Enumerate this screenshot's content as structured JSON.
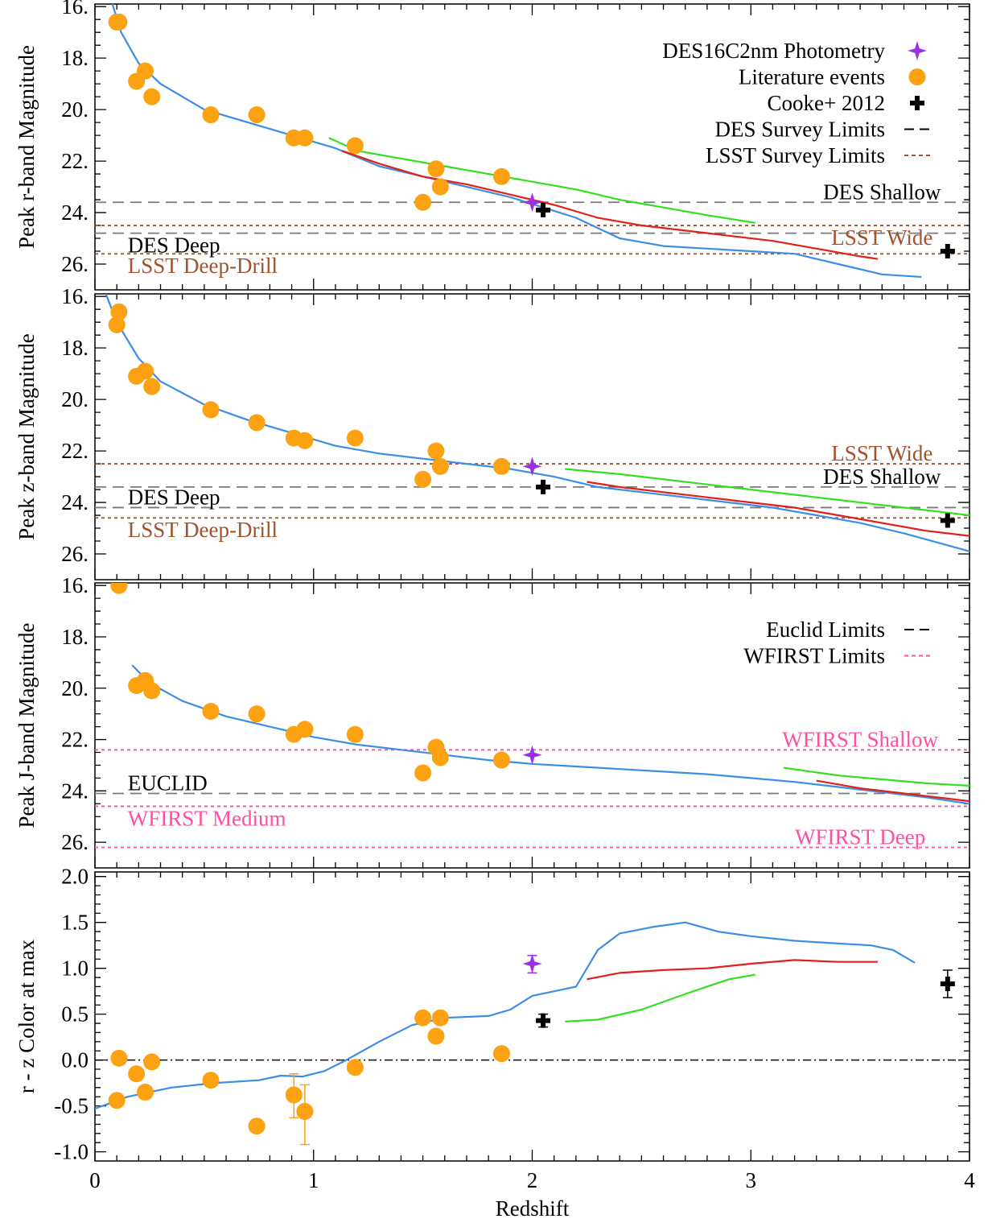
{
  "colors": {
    "model_blue": "#3b8ee6",
    "model_red": "#e0201a",
    "model_green": "#33e01e",
    "literature": "#fba112",
    "des16": "#9a2fe6",
    "cooke": "#000000",
    "des_limit": "#7a7a7a",
    "lsst_limit": "#a0522d",
    "wfirst_limit": "#ff4fa3",
    "lsst_text": "#a0522d",
    "wfirst_text": "#ff4fa3"
  },
  "chart_data": [
    {
      "type": "scatter",
      "ylabel": "Peak r-band Magnitude",
      "xlim": [
        0,
        4
      ],
      "ylim": [
        27,
        15.9
      ],
      "yticks": [
        "16.",
        "18.",
        "20.",
        "22.",
        "24.",
        "26."
      ],
      "legend": [
        {
          "label": "DES16C2nm Photometry",
          "marker": "star",
          "color": "#9a2fe6"
        },
        {
          "label": "Literature events",
          "marker": "circle",
          "color": "#fba112"
        },
        {
          "label": "Cooke+ 2012",
          "marker": "plus",
          "color": "#000000"
        },
        {
          "label": "DES Survey Limits",
          "marker": "dash",
          "color": "#000000"
        },
        {
          "label": "LSST Survey Limits",
          "marker": "dot",
          "color": "#a0522d"
        }
      ],
      "limits": [
        {
          "label": "DES Shallow",
          "y": 23.6,
          "style": "dash",
          "color": "#7a7a7a",
          "text_color": "#000000",
          "label_x": 3.6,
          "label_pos": "above"
        },
        {
          "label": "LSST Wide",
          "y": 24.5,
          "style": "dot",
          "color": "#a0522d",
          "text_color": "#a0522d",
          "label_x": 3.6,
          "label_pos": "below"
        },
        {
          "label": "DES Deep",
          "y": 24.8,
          "style": "dash",
          "color": "#7a7a7a",
          "text_color": "#000000",
          "label_x": 0.15,
          "label_pos": "below"
        },
        {
          "label": "LSST Deep-Drill",
          "y": 25.6,
          "style": "dot",
          "color": "#a0522d",
          "text_color": "#a0522d",
          "label_x": 0.15,
          "label_pos": "below"
        }
      ],
      "series": [
        {
          "name": "",
          "color": "#3b8ee6",
          "x": [
            0.08,
            0.12,
            0.2,
            0.3,
            0.5,
            0.7,
            0.9,
            1.1,
            1.3,
            1.5,
            1.7,
            1.9,
            2.05,
            2.2,
            2.3,
            2.4,
            2.6,
            2.8,
            3.0,
            3.2,
            3.4,
            3.6,
            3.78
          ],
          "y": [
            15.9,
            17.0,
            18.2,
            19.0,
            20.0,
            20.5,
            21.0,
            21.5,
            22.2,
            22.6,
            23.0,
            23.4,
            23.8,
            24.2,
            24.6,
            25.0,
            25.3,
            25.4,
            25.5,
            25.6,
            26.0,
            26.4,
            26.5
          ]
        },
        {
          "name": "",
          "color": "#e0201a",
          "x": [
            1.13,
            1.3,
            1.5,
            1.7,
            1.9,
            2.1,
            2.3,
            2.5,
            2.7,
            2.9,
            3.1,
            3.3,
            3.5,
            3.58
          ],
          "y": [
            21.6,
            22.1,
            22.6,
            22.9,
            23.3,
            23.7,
            24.2,
            24.5,
            24.7,
            24.9,
            25.1,
            25.4,
            25.7,
            25.8
          ]
        },
        {
          "name": "",
          "color": "#33e01e",
          "x": [
            1.07,
            1.2,
            1.4,
            1.6,
            1.8,
            2.0,
            2.2,
            2.4,
            2.6,
            2.8,
            3.02
          ],
          "y": [
            21.1,
            21.6,
            21.9,
            22.2,
            22.5,
            22.8,
            23.1,
            23.5,
            23.8,
            24.1,
            24.4
          ]
        }
      ],
      "literature": {
        "x": [
          0.1,
          0.11,
          0.19,
          0.23,
          0.26,
          0.53,
          0.74,
          0.91,
          0.96,
          1.19,
          1.5,
          1.56,
          1.58,
          1.86
        ],
        "y": [
          16.6,
          16.6,
          18.9,
          18.5,
          19.5,
          20.2,
          20.2,
          21.1,
          21.1,
          21.4,
          23.6,
          22.3,
          23.0,
          22.6
        ]
      },
      "des16": {
        "x": [
          2.0
        ],
        "y": [
          23.6
        ]
      },
      "cooke": {
        "x": [
          2.05,
          3.9
        ],
        "y": [
          23.9,
          25.5
        ]
      }
    },
    {
      "type": "scatter",
      "ylabel": "Peak z-band Magnitude",
      "xlim": [
        0,
        4
      ],
      "ylim": [
        27,
        15.9
      ],
      "yticks": [
        "16.",
        "18.",
        "20.",
        "22.",
        "24.",
        "26."
      ],
      "limits": [
        {
          "label": "LSST Wide",
          "y": 22.5,
          "style": "dot",
          "color": "#a0522d",
          "text_color": "#a0522d",
          "label_x": 3.6,
          "label_pos": "above"
        },
        {
          "label": "DES Shallow",
          "y": 23.4,
          "style": "dash",
          "color": "#7a7a7a",
          "text_color": "#000000",
          "label_x": 3.6,
          "label_pos": "above"
        },
        {
          "label": "DES Deep",
          "y": 24.2,
          "style": "dash",
          "color": "#7a7a7a",
          "text_color": "#000000",
          "label_x": 0.15,
          "label_pos": "above"
        },
        {
          "label": "LSST Deep-Drill",
          "y": 24.6,
          "style": "dot",
          "color": "#a0522d",
          "text_color": "#a0522d",
          "label_x": 0.15,
          "label_pos": "below"
        }
      ],
      "series": [
        {
          "name": "",
          "color": "#3b8ee6",
          "x": [
            0.05,
            0.1,
            0.2,
            0.3,
            0.5,
            0.7,
            0.9,
            1.1,
            1.3,
            1.5,
            1.7,
            1.9,
            2.1,
            2.3,
            2.5,
            2.7,
            2.9,
            3.1,
            3.3,
            3.5,
            3.7,
            4.0
          ],
          "y": [
            15.9,
            17.0,
            18.4,
            19.3,
            20.2,
            20.8,
            21.3,
            21.8,
            22.1,
            22.3,
            22.5,
            22.7,
            23.0,
            23.4,
            23.6,
            23.8,
            24.0,
            24.2,
            24.5,
            24.8,
            25.2,
            25.9
          ]
        },
        {
          "name": "",
          "color": "#e0201a",
          "x": [
            2.25,
            2.4,
            2.6,
            2.8,
            3.0,
            3.2,
            3.4,
            3.6,
            3.8,
            4.0
          ],
          "y": [
            23.2,
            23.4,
            23.6,
            23.8,
            24.0,
            24.2,
            24.5,
            24.8,
            25.1,
            25.3
          ]
        },
        {
          "name": "",
          "color": "#33e01e",
          "x": [
            2.15,
            2.4,
            2.6,
            2.8,
            3.0,
            3.2,
            3.4,
            3.6,
            3.8,
            4.0
          ],
          "y": [
            22.7,
            22.9,
            23.1,
            23.3,
            23.5,
            23.7,
            23.9,
            24.1,
            24.3,
            24.5
          ]
        }
      ],
      "literature": {
        "x": [
          0.1,
          0.11,
          0.19,
          0.23,
          0.26,
          0.53,
          0.74,
          0.91,
          0.96,
          1.19,
          1.5,
          1.56,
          1.58,
          1.86
        ],
        "y": [
          17.1,
          16.6,
          19.1,
          18.9,
          19.5,
          20.4,
          20.9,
          21.5,
          21.6,
          21.5,
          23.1,
          22.0,
          22.6,
          22.6
        ]
      },
      "des16": {
        "x": [
          2.0
        ],
        "y": [
          22.6
        ]
      },
      "cooke": {
        "x": [
          2.05,
          3.9
        ],
        "y": [
          23.4,
          24.7
        ]
      }
    },
    {
      "type": "scatter",
      "ylabel": "Peak J-band Magnitude",
      "xlim": [
        0,
        4
      ],
      "ylim": [
        27,
        15.9
      ],
      "yticks": [
        "16.",
        "18.",
        "20.",
        "22.",
        "24.",
        "26."
      ],
      "legend": [
        {
          "label": "Euclid Limits",
          "marker": "dash",
          "color": "#000000"
        },
        {
          "label": "WFIRST Limits",
          "marker": "dot",
          "color": "#ff4fa3"
        }
      ],
      "limits": [
        {
          "label": "WFIRST Shallow",
          "y": 22.4,
          "style": "dot",
          "color": "#ff4fa3",
          "text_color": "#ff4fa3",
          "label_x": 3.5,
          "label_pos": "above"
        },
        {
          "label": "EUCLID",
          "y": 24.1,
          "style": "dash",
          "color": "#7a7a7a",
          "text_color": "#000000",
          "label_x": 0.15,
          "label_pos": "above"
        },
        {
          "label": "WFIRST Medium",
          "y": 24.6,
          "style": "dot",
          "color": "#ff4fa3",
          "text_color": "#ff4fa3",
          "label_x": 0.15,
          "label_pos": "below"
        },
        {
          "label": "WFIRST Deep",
          "y": 26.2,
          "style": "dot",
          "color": "#ff4fa3",
          "text_color": "#ff4fa3",
          "label_x": 3.5,
          "label_pos": "above"
        }
      ],
      "series": [
        {
          "name": "",
          "color": "#3b8ee6",
          "x": [
            0.17,
            0.25,
            0.4,
            0.6,
            0.8,
            1.0,
            1.2,
            1.4,
            1.6,
            1.8,
            2.0,
            2.2,
            2.4,
            2.6,
            2.8,
            3.0,
            3.2,
            3.4,
            3.6,
            3.8,
            4.0
          ],
          "y": [
            19.1,
            19.8,
            20.5,
            21.1,
            21.5,
            21.9,
            22.2,
            22.4,
            22.6,
            22.8,
            22.95,
            23.05,
            23.15,
            23.25,
            23.35,
            23.5,
            23.65,
            23.85,
            24.05,
            24.25,
            24.5
          ]
        },
        {
          "name": "",
          "color": "#e0201a",
          "x": [
            3.3,
            3.5,
            3.7,
            3.9,
            4.0
          ],
          "y": [
            23.6,
            23.9,
            24.1,
            24.3,
            24.4
          ]
        },
        {
          "name": "",
          "color": "#33e01e",
          "x": [
            3.15,
            3.4,
            3.6,
            3.8,
            4.0
          ],
          "y": [
            23.1,
            23.4,
            23.55,
            23.7,
            23.8
          ]
        }
      ],
      "literature": {
        "x": [
          0.11,
          0.19,
          0.23,
          0.26,
          0.53,
          0.74,
          0.91,
          0.96,
          1.19,
          1.5,
          1.56,
          1.58,
          1.86
        ],
        "y": [
          16.0,
          19.9,
          19.7,
          20.1,
          20.9,
          21.0,
          21.8,
          21.6,
          21.8,
          23.3,
          22.3,
          22.7,
          22.8
        ]
      },
      "des16": {
        "x": [
          2.0
        ],
        "y": [
          22.6
        ]
      },
      "cooke": {
        "x": [],
        "y": []
      }
    },
    {
      "type": "scatter",
      "ylabel": "r - z Color at max",
      "xlabel": "Redshift",
      "xlim": [
        0,
        4
      ],
      "xticks": [
        "0",
        "1",
        "2",
        "3",
        "4"
      ],
      "ylim": [
        -1.1,
        2.05
      ],
      "yticks": [
        "2.0",
        "1.5",
        "1.0",
        "0.5",
        "0.0",
        "-0.5",
        "-1.0"
      ],
      "reference_line": {
        "y": 0.0,
        "style": "dashdot"
      },
      "series": [
        {
          "name": "",
          "color": "#3b8ee6",
          "x": [
            0.0,
            0.15,
            0.35,
            0.55,
            0.75,
            0.85,
            0.95,
            1.05,
            1.15,
            1.3,
            1.45,
            1.6,
            1.8,
            1.9,
            2.0,
            2.1,
            2.2,
            2.3,
            2.4,
            2.55,
            2.7,
            2.85,
            3.0,
            3.2,
            3.4,
            3.55,
            3.65,
            3.75
          ],
          "y": [
            -0.53,
            -0.4,
            -0.3,
            -0.25,
            -0.22,
            -0.17,
            -0.18,
            -0.12,
            0.0,
            0.2,
            0.38,
            0.46,
            0.48,
            0.55,
            0.7,
            0.75,
            0.8,
            1.2,
            1.38,
            1.45,
            1.5,
            1.4,
            1.35,
            1.3,
            1.27,
            1.25,
            1.2,
            1.06
          ]
        },
        {
          "name": "",
          "color": "#e0201a",
          "x": [
            2.25,
            2.4,
            2.6,
            2.8,
            3.0,
            3.2,
            3.4,
            3.58
          ],
          "y": [
            0.88,
            0.95,
            0.98,
            1.0,
            1.05,
            1.09,
            1.07,
            1.07
          ]
        },
        {
          "name": "",
          "color": "#33e01e",
          "x": [
            2.15,
            2.3,
            2.5,
            2.7,
            2.9,
            3.02
          ],
          "y": [
            0.42,
            0.44,
            0.55,
            0.72,
            0.88,
            0.93
          ]
        }
      ],
      "literature": {
        "x": [
          0.1,
          0.11,
          0.19,
          0.23,
          0.26,
          0.53,
          0.74,
          0.91,
          0.96,
          1.19,
          1.5,
          1.56,
          1.58,
          1.86
        ],
        "y": [
          -0.44,
          0.02,
          -0.15,
          -0.35,
          -0.02,
          -0.22,
          -0.72,
          -0.38,
          -0.56,
          -0.08,
          0.46,
          0.26,
          0.46,
          0.07
        ]
      },
      "literature_err": [
        {
          "x": 0.91,
          "y": -0.38,
          "lo": -0.63,
          "hi": -0.15
        },
        {
          "x": 0.96,
          "y": -0.56,
          "lo": -0.92,
          "hi": -0.27
        }
      ],
      "des16": {
        "x": [
          2.0
        ],
        "y": [
          1.05
        ]
      },
      "des16_err": {
        "lo": 0.95,
        "hi": 1.14
      },
      "cooke": {
        "x": [
          2.05,
          3.9
        ],
        "y": [
          0.43,
          0.83
        ]
      },
      "cooke_err": [
        {
          "x": 2.05,
          "lo": 0.36,
          "hi": 0.5
        },
        {
          "x": 3.9,
          "lo": 0.68,
          "hi": 0.98
        }
      ]
    }
  ]
}
